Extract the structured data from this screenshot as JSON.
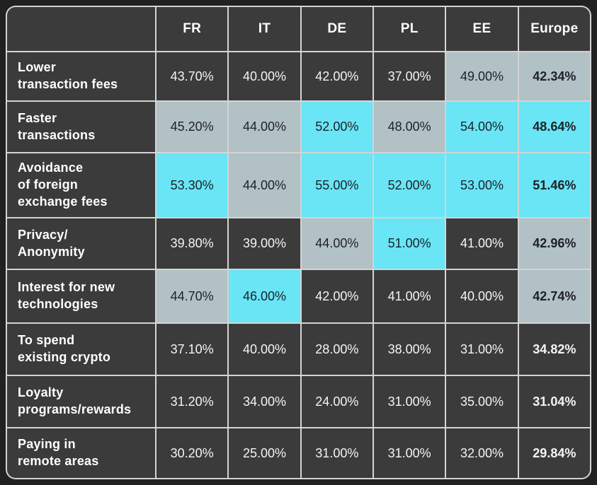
{
  "colors": {
    "page-bg": "#212121",
    "cell-dark": "#3b3b3b",
    "cell-mid": "#b2c1c6",
    "cell-high": "#69e5f6",
    "grid-line": "#ffffff8f",
    "text-light": "#f4f4f4",
    "text-dark": "#1d2226"
  },
  "table": {
    "corner_label": "",
    "columns": [
      "FR",
      "IT",
      "DE",
      "PL",
      "EE",
      "Europe"
    ],
    "rows": [
      {
        "label": "Lower transaction fees",
        "label_lines": [
          "Lower",
          "transaction fees"
        ],
        "cells": [
          {
            "text": "43.70%",
            "tone": "dark"
          },
          {
            "text": "40.00%",
            "tone": "dark"
          },
          {
            "text": "42.00%",
            "tone": "dark"
          },
          {
            "text": "37.00%",
            "tone": "dark"
          },
          {
            "text": "49.00%",
            "tone": "mid"
          },
          {
            "text": "42.34%",
            "tone": "mid"
          }
        ]
      },
      {
        "label": "Faster transactions",
        "label_lines": [
          "Faster",
          "transactions"
        ],
        "cells": [
          {
            "text": "45.20%",
            "tone": "mid"
          },
          {
            "text": "44.00%",
            "tone": "mid"
          },
          {
            "text": "52.00%",
            "tone": "high"
          },
          {
            "text": "48.00%",
            "tone": "mid"
          },
          {
            "text": "54.00%",
            "tone": "high"
          },
          {
            "text": "48.64%",
            "tone": "high"
          }
        ]
      },
      {
        "label": "Avoidance of foreign exchange fees",
        "label_lines": [
          "Avoidance",
          "of foreign",
          "exchange fees"
        ],
        "cells": [
          {
            "text": "53.30%",
            "tone": "high"
          },
          {
            "text": "44.00%",
            "tone": "mid"
          },
          {
            "text": "55.00%",
            "tone": "high"
          },
          {
            "text": "52.00%",
            "tone": "high"
          },
          {
            "text": "53.00%",
            "tone": "high"
          },
          {
            "text": "51.46%",
            "tone": "high"
          }
        ]
      },
      {
        "label": "Privacy/Anonymity",
        "label_lines": [
          "Privacy/",
          "Anonymity"
        ],
        "cells": [
          {
            "text": "39.80%",
            "tone": "dark"
          },
          {
            "text": "39.00%",
            "tone": "dark"
          },
          {
            "text": "44.00%",
            "tone": "mid"
          },
          {
            "text": "51.00%",
            "tone": "high"
          },
          {
            "text": "41.00%",
            "tone": "dark"
          },
          {
            "text": "42.96%",
            "tone": "mid"
          }
        ]
      },
      {
        "label": "Interest for new technologies",
        "label_lines": [
          "Interest for new",
          "technologies"
        ],
        "cells": [
          {
            "text": "44.70%",
            "tone": "mid"
          },
          {
            "text": "46.00%",
            "tone": "high"
          },
          {
            "text": "42.00%",
            "tone": "dark"
          },
          {
            "text": "41.00%",
            "tone": "dark"
          },
          {
            "text": "40.00%",
            "tone": "dark"
          },
          {
            "text": "42.74%",
            "tone": "mid"
          }
        ]
      },
      {
        "label": "To spend existing crypto",
        "label_lines": [
          "To spend",
          "existing crypto"
        ],
        "cells": [
          {
            "text": "37.10%",
            "tone": "dark"
          },
          {
            "text": "40.00%",
            "tone": "dark"
          },
          {
            "text": "28.00%",
            "tone": "dark"
          },
          {
            "text": "38.00%",
            "tone": "dark"
          },
          {
            "text": "31.00%",
            "tone": "dark"
          },
          {
            "text": "34.82%",
            "tone": "dark"
          }
        ]
      },
      {
        "label": "Loyalty programs/rewards",
        "label_lines": [
          "Loyalty",
          "programs/rewards"
        ],
        "cells": [
          {
            "text": "31.20%",
            "tone": "dark"
          },
          {
            "text": "34.00%",
            "tone": "dark"
          },
          {
            "text": "24.00%",
            "tone": "dark"
          },
          {
            "text": "31.00%",
            "tone": "dark"
          },
          {
            "text": "35.00%",
            "tone": "dark"
          },
          {
            "text": "31.04%",
            "tone": "dark"
          }
        ]
      },
      {
        "label": "Paying in remote areas",
        "label_lines": [
          "Paying in",
          "remote areas"
        ],
        "cells": [
          {
            "text": "30.20%",
            "tone": "dark"
          },
          {
            "text": "25.00%",
            "tone": "dark"
          },
          {
            "text": "31.00%",
            "tone": "dark"
          },
          {
            "text": "31.00%",
            "tone": "dark"
          },
          {
            "text": "32.00%",
            "tone": "dark"
          },
          {
            "text": "29.84%",
            "tone": "dark"
          }
        ]
      }
    ]
  },
  "chart_data": {
    "type": "heatmap",
    "x_labels": [
      "FR",
      "IT",
      "DE",
      "PL",
      "EE",
      "Europe"
    ],
    "y_labels": [
      "Lower transaction fees",
      "Faster transactions",
      "Avoidance of foreign exchange fees",
      "Privacy/Anonymity",
      "Interest for new technologies",
      "To spend existing crypto",
      "Loyalty programs/rewards",
      "Paying in remote areas"
    ],
    "values": [
      [
        43.7,
        40.0,
        42.0,
        37.0,
        49.0,
        42.34
      ],
      [
        45.2,
        44.0,
        52.0,
        48.0,
        54.0,
        48.64
      ],
      [
        53.3,
        44.0,
        55.0,
        52.0,
        53.0,
        51.46
      ],
      [
        39.8,
        39.0,
        44.0,
        51.0,
        41.0,
        42.96
      ],
      [
        44.7,
        46.0,
        42.0,
        41.0,
        40.0,
        42.74
      ],
      [
        37.1,
        40.0,
        28.0,
        38.0,
        31.0,
        34.82
      ],
      [
        31.2,
        34.0,
        24.0,
        31.0,
        35.0,
        31.04
      ],
      [
        30.2,
        25.0,
        31.0,
        31.0,
        32.0,
        29.84
      ]
    ],
    "value_format": "percent, two decimals",
    "cell_tones": [
      [
        "dark",
        "dark",
        "dark",
        "dark",
        "mid",
        "mid"
      ],
      [
        "mid",
        "mid",
        "high",
        "mid",
        "high",
        "high"
      ],
      [
        "high",
        "mid",
        "high",
        "high",
        "high",
        "high"
      ],
      [
        "dark",
        "dark",
        "mid",
        "high",
        "dark",
        "mid"
      ],
      [
        "mid",
        "high",
        "dark",
        "dark",
        "dark",
        "mid"
      ],
      [
        "dark",
        "dark",
        "dark",
        "dark",
        "dark",
        "dark"
      ],
      [
        "dark",
        "dark",
        "dark",
        "dark",
        "dark",
        "dark"
      ],
      [
        "dark",
        "dark",
        "dark",
        "dark",
        "dark",
        "dark"
      ]
    ],
    "tone_colors": {
      "dark": "#3b3b3b",
      "mid": "#b2c1c6",
      "high": "#69e5f6"
    },
    "layout": {
      "grid": "on",
      "last_column_bold": true,
      "legend": "none"
    }
  }
}
